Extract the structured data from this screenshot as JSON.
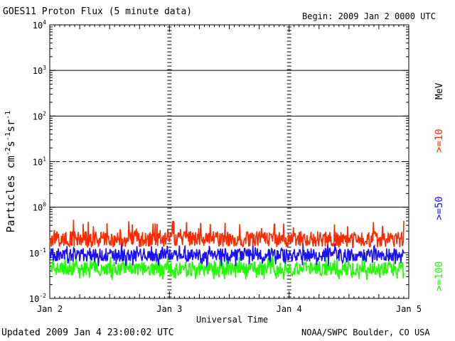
{
  "chart_data": {
    "type": "line",
    "title": "GOES11 Proton Flux (5 minute data)",
    "begin_label": "Begin: 2009 Jan 2 0000 UTC",
    "xlabel": "Universal Time",
    "ylabel_base": "Particles cm",
    "ylabel_parts": [
      {
        "text": "Particles cm",
        "sup": false
      },
      {
        "text": "-2",
        "sup": true
      },
      {
        "text": "s",
        "sup": false
      },
      {
        "text": "-1",
        "sup": true
      },
      {
        "text": "sr",
        "sup": false
      },
      {
        "text": "-1",
        "sup": true
      }
    ],
    "x_ticks": [
      "Jan 2",
      "Jan 3",
      "Jan 4",
      "Jan 5"
    ],
    "x_range_days": [
      0,
      3
    ],
    "y_scale": "log",
    "y_range": [
      0.01,
      10000
    ],
    "y_ticks": [
      {
        "base": "10",
        "exp": "4"
      },
      {
        "base": "10",
        "exp": "3"
      },
      {
        "base": "10",
        "exp": "2"
      },
      {
        "base": "10",
        "exp": "1"
      },
      {
        "base": "10",
        "exp": "0"
      },
      {
        "base": "10",
        "exp": "-1"
      },
      {
        "base": "10",
        "exp": "-2"
      }
    ],
    "units_label": "MeV",
    "series": [
      {
        "name": ">=10",
        "color": "#ff2a00",
        "mean": 0.2,
        "low": 0.13,
        "high": 0.55
      },
      {
        "name": ">=50",
        "color": "#1a10ff",
        "mean": 0.09,
        "low": 0.05,
        "high": 0.17
      },
      {
        "name": ">=100",
        "color": "#20ff00",
        "mean": 0.045,
        "low": 0.025,
        "high": 0.09
      }
    ],
    "threshold_lines": [
      {
        "value": 1,
        "style": "solid"
      },
      {
        "value": 10,
        "style": "dashed"
      },
      {
        "value": 100,
        "style": "solid"
      },
      {
        "value": 1000,
        "style": "solid"
      }
    ]
  },
  "footer": {
    "updated": "Updated 2009 Jan  4 23:00:02 UTC",
    "source": "NOAA/SWPC Boulder, CO USA"
  }
}
